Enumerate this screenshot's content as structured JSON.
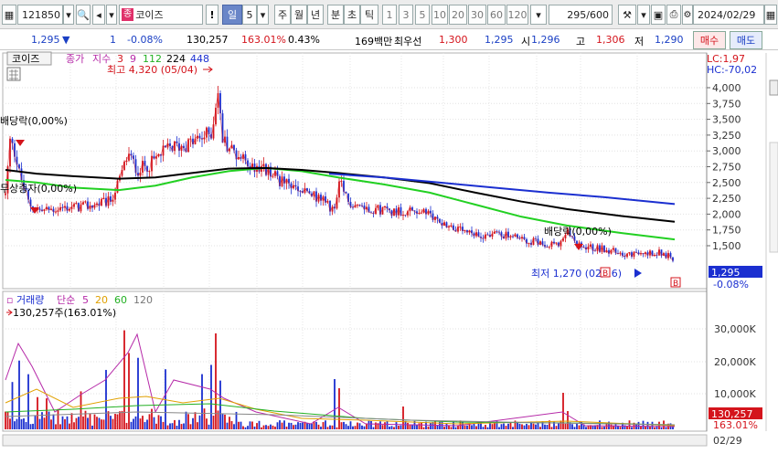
{
  "toolbar": {
    "code": "121850",
    "stock_badge": "종",
    "stock_name": "코이즈",
    "warn": "!",
    "period": "일",
    "period_value": "5",
    "periods": [
      "주",
      "월",
      "년",
      "분",
      "초",
      "틱"
    ],
    "minute_steps": [
      "1",
      "3",
      "5",
      "10",
      "20",
      "30",
      "60",
      "120"
    ],
    "count": "295/600",
    "date": "2024/02/29"
  },
  "quote": {
    "price": "1,295",
    "arrow": "▼",
    "change": "1",
    "rate": "-0.08%",
    "volume": "130,257",
    "volume_rate": "163.01%",
    "turnover": "0.43%",
    "amount": "169백만",
    "best_bid_label": "최우선",
    "best_bid": "1,300",
    "best_ask": "1,295",
    "open_label": "시",
    "open": "1,296",
    "high_label": "고",
    "high": "1,306",
    "low_label": "저",
    "low": "1,290",
    "buy_label": "매수",
    "sell_label": "매도"
  },
  "legend": {
    "name": "코이즈",
    "close_label": "종가",
    "ma_label": "지수",
    "ma": [
      "3",
      "9",
      "112",
      "224",
      "448"
    ],
    "lc": "LC:1,97",
    "hc": "HC:-70,02"
  },
  "annotations": {
    "max": "최고 4,320 (05/04)",
    "min": "최저 1,270 (02/16)",
    "div_left": "배당락(0,00%)",
    "div_right": "배당락(0,00%)",
    "left_mid": "무상증자(0,00%)",
    "current_price": "1,295",
    "current_rate": "-0.08%",
    "current_vol": "130,257",
    "current_vol_rate": "163.01%"
  },
  "volume_legend": {
    "label": "거래량",
    "type": "단순",
    "periods": [
      "5",
      "20",
      "60",
      "120"
    ],
    "max": "130,257주(163.01%)"
  },
  "price_axis": [
    "4,000",
    "3,750",
    "3,500",
    "3,250",
    "3,000",
    "2,750",
    "2,500",
    "2,250",
    "2,000",
    "1,750",
    "1,500"
  ],
  "volume_axis": [
    "30,000K",
    "20,000K",
    "10,000K"
  ],
  "x_axis": [
    "2022/12",
    "02",
    "03",
    "04",
    "05",
    "06",
    "07",
    "08",
    "09",
    "10",
    "11",
    "12",
    "2024/01",
    "02",
    "02/29"
  ],
  "colors": {
    "up": "#d4141c",
    "down": "#1a3fc4",
    "ma_black": "#000000",
    "ma_blue": "#1b2fd0",
    "ma_green": "#22d022"
  },
  "chart_data": {
    "type": "line",
    "series": [
      {
        "name": "종가",
        "x": [
          "2022/12",
          "02",
          "03",
          "04",
          "05",
          "06",
          "07",
          "08",
          "09",
          "10",
          "11",
          "12",
          "2024/01",
          "02",
          "02/29"
        ],
        "values": [
          2600,
          2050,
          2350,
          3050,
          4000,
          2850,
          2450,
          2250,
          2070,
          1700,
          1580,
          1480,
          1400,
          1350,
          1295
        ]
      }
    ],
    "ylim": [
      1250,
      4200
    ]
  }
}
